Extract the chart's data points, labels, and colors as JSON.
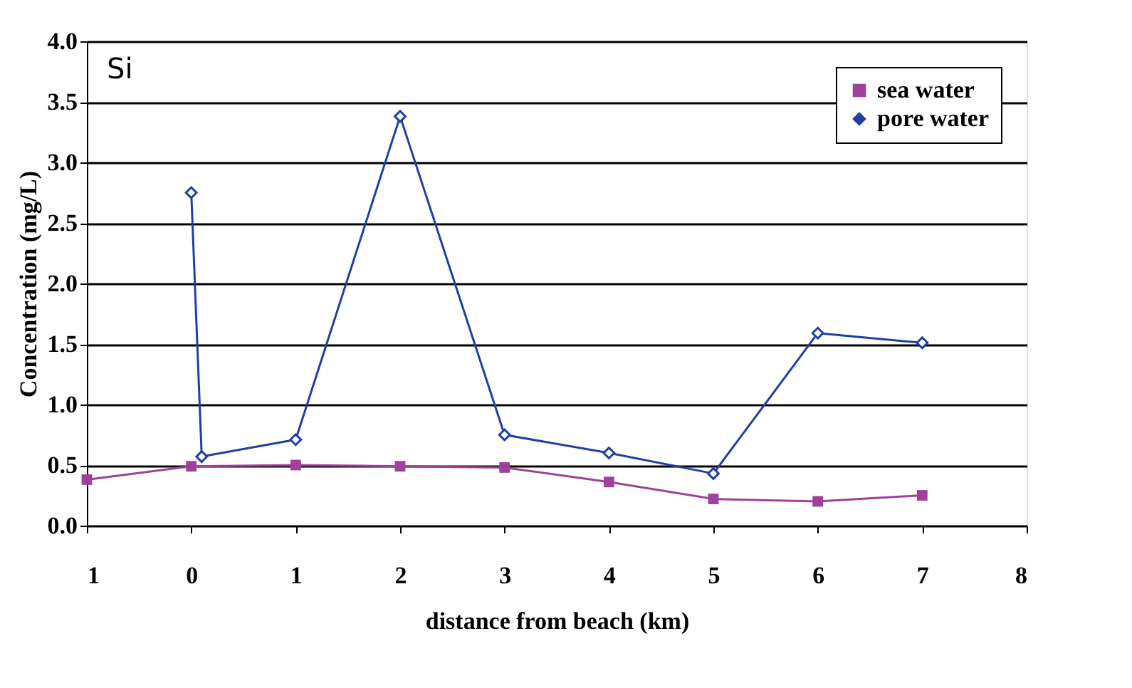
{
  "chart_data": {
    "type": "line",
    "xlabel": "distance from beach (km)",
    "ylabel": "Concentration (mg/L)",
    "annotations": [
      "Si"
    ],
    "xlim": [
      -1,
      8
    ],
    "xticks": [
      {
        "value": -1,
        "label": "1"
      },
      0,
      1,
      2,
      3,
      4,
      5,
      6,
      7,
      8
    ],
    "ylim": [
      0,
      4
    ],
    "yticks": [
      {
        "value": 0,
        "label": "0.0"
      },
      {
        "value": 0.5,
        "label": "0.5"
      },
      {
        "value": 1,
        "label": "1.0"
      },
      {
        "value": 1.5,
        "label": "1.5"
      },
      {
        "value": 2,
        "label": "2.0"
      },
      {
        "value": 2.5,
        "label": "2.5"
      },
      {
        "value": 3,
        "label": "3.0"
      },
      {
        "value": 3.5,
        "label": "3.5"
      },
      {
        "value": 4,
        "label": "4.0"
      }
    ],
    "grid": "y",
    "legend": "top right",
    "series": [
      {
        "name": "sea water",
        "color": "#a0409a",
        "marker": "square",
        "x": [
          -1,
          0,
          1,
          2,
          3,
          4,
          5,
          6,
          7
        ],
        "values": [
          0.38,
          0.49,
          0.5,
          0.49,
          0.48,
          0.36,
          0.22,
          0.2,
          0.25
        ]
      },
      {
        "name": "pore water",
        "color": "#2040a0",
        "marker": "diamond",
        "x": [
          0,
          0.1,
          1,
          2,
          3,
          4,
          5,
          6,
          7
        ],
        "values": [
          2.75,
          0.57,
          0.71,
          3.38,
          0.75,
          0.6,
          0.43,
          1.59,
          1.51
        ]
      }
    ]
  }
}
